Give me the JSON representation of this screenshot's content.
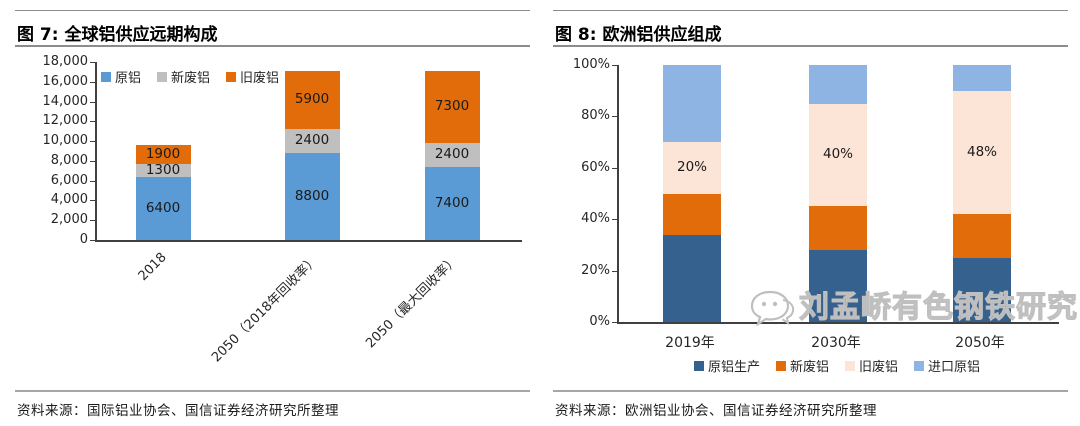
{
  "panels": [
    {
      "title": "图 7: 全球铝供应远期构成",
      "source": "资料来源：国际铝业协会、国信证券经济研究所整理"
    },
    {
      "title": "图 8: 欧洲铝供应组成",
      "source": "资料来源：欧洲铝业协会、国信证券经济研究所整理"
    }
  ],
  "watermark": {
    "text": "刘孟峤有色钢铁研究",
    "icon": "chat-bubble-logo-icon",
    "color": "#BFBFBF"
  },
  "chart_data": [
    {
      "type": "bar",
      "stacked": true,
      "title": "全球铝供应远期构成",
      "categories": [
        "2018",
        "2050（2018年回收率）",
        "2050（最大回收率）"
      ],
      "series": [
        {
          "name": "原铝",
          "color": "#5B9BD5",
          "values": [
            6400,
            8800,
            7400
          ],
          "labels": [
            "6400",
            "8800",
            "7400"
          ]
        },
        {
          "name": "新废铝",
          "color": "#BFBFBF",
          "values": [
            1300,
            2400,
            2400
          ],
          "labels": [
            "1300",
            "2400",
            "2400"
          ]
        },
        {
          "name": "旧废铝",
          "color": "#E36C0A",
          "values": [
            1900,
            5900,
            7300
          ],
          "labels": [
            "1900",
            "5900",
            "7300"
          ]
        }
      ],
      "totals": [
        9600,
        17100,
        17100
      ],
      "ylim": [
        0,
        18000
      ],
      "yticks": [
        {
          "v": 0,
          "label": "0"
        },
        {
          "v": 2000,
          "label": "2,000"
        },
        {
          "v": 4000,
          "label": "4,000"
        },
        {
          "v": 6000,
          "label": "6,000"
        },
        {
          "v": 8000,
          "label": "8,000"
        },
        {
          "v": 10000,
          "label": "10,000"
        },
        {
          "v": 12000,
          "label": "12,000"
        },
        {
          "v": 14000,
          "label": "14,000"
        },
        {
          "v": 16000,
          "label": "16,000"
        },
        {
          "v": 18000,
          "label": "18,000"
        }
      ],
      "legend_position": "top-left",
      "grid": false
    },
    {
      "type": "bar",
      "stacked": true,
      "percent": true,
      "title": "欧洲铝供应组成",
      "categories": [
        "2019年",
        "2030年",
        "2050年"
      ],
      "series": [
        {
          "name": "原铝生产",
          "color": "#35618E",
          "values": [
            34,
            28,
            25
          ],
          "labels": [
            null,
            null,
            null
          ]
        },
        {
          "name": "新废铝",
          "color": "#E36C0A",
          "values": [
            16,
            17,
            17
          ],
          "labels": [
            null,
            null,
            null
          ]
        },
        {
          "name": "旧废铝",
          "color": "#FCE4D6",
          "values": [
            20,
            40,
            48
          ],
          "labels": [
            "20%",
            "40%",
            "48%"
          ]
        },
        {
          "name": "进口原铝",
          "color": "#8EB4E3",
          "values": [
            30,
            15,
            10
          ],
          "labels": [
            null,
            null,
            null
          ]
        }
      ],
      "ylim": [
        0,
        100
      ],
      "yticks": [
        {
          "v": 0,
          "label": "0%"
        },
        {
          "v": 20,
          "label": "20%"
        },
        {
          "v": 40,
          "label": "40%"
        },
        {
          "v": 60,
          "label": "60%"
        },
        {
          "v": 80,
          "label": "80%"
        },
        {
          "v": 100,
          "label": "100%"
        }
      ],
      "legend_position": "bottom",
      "grid": false
    }
  ]
}
